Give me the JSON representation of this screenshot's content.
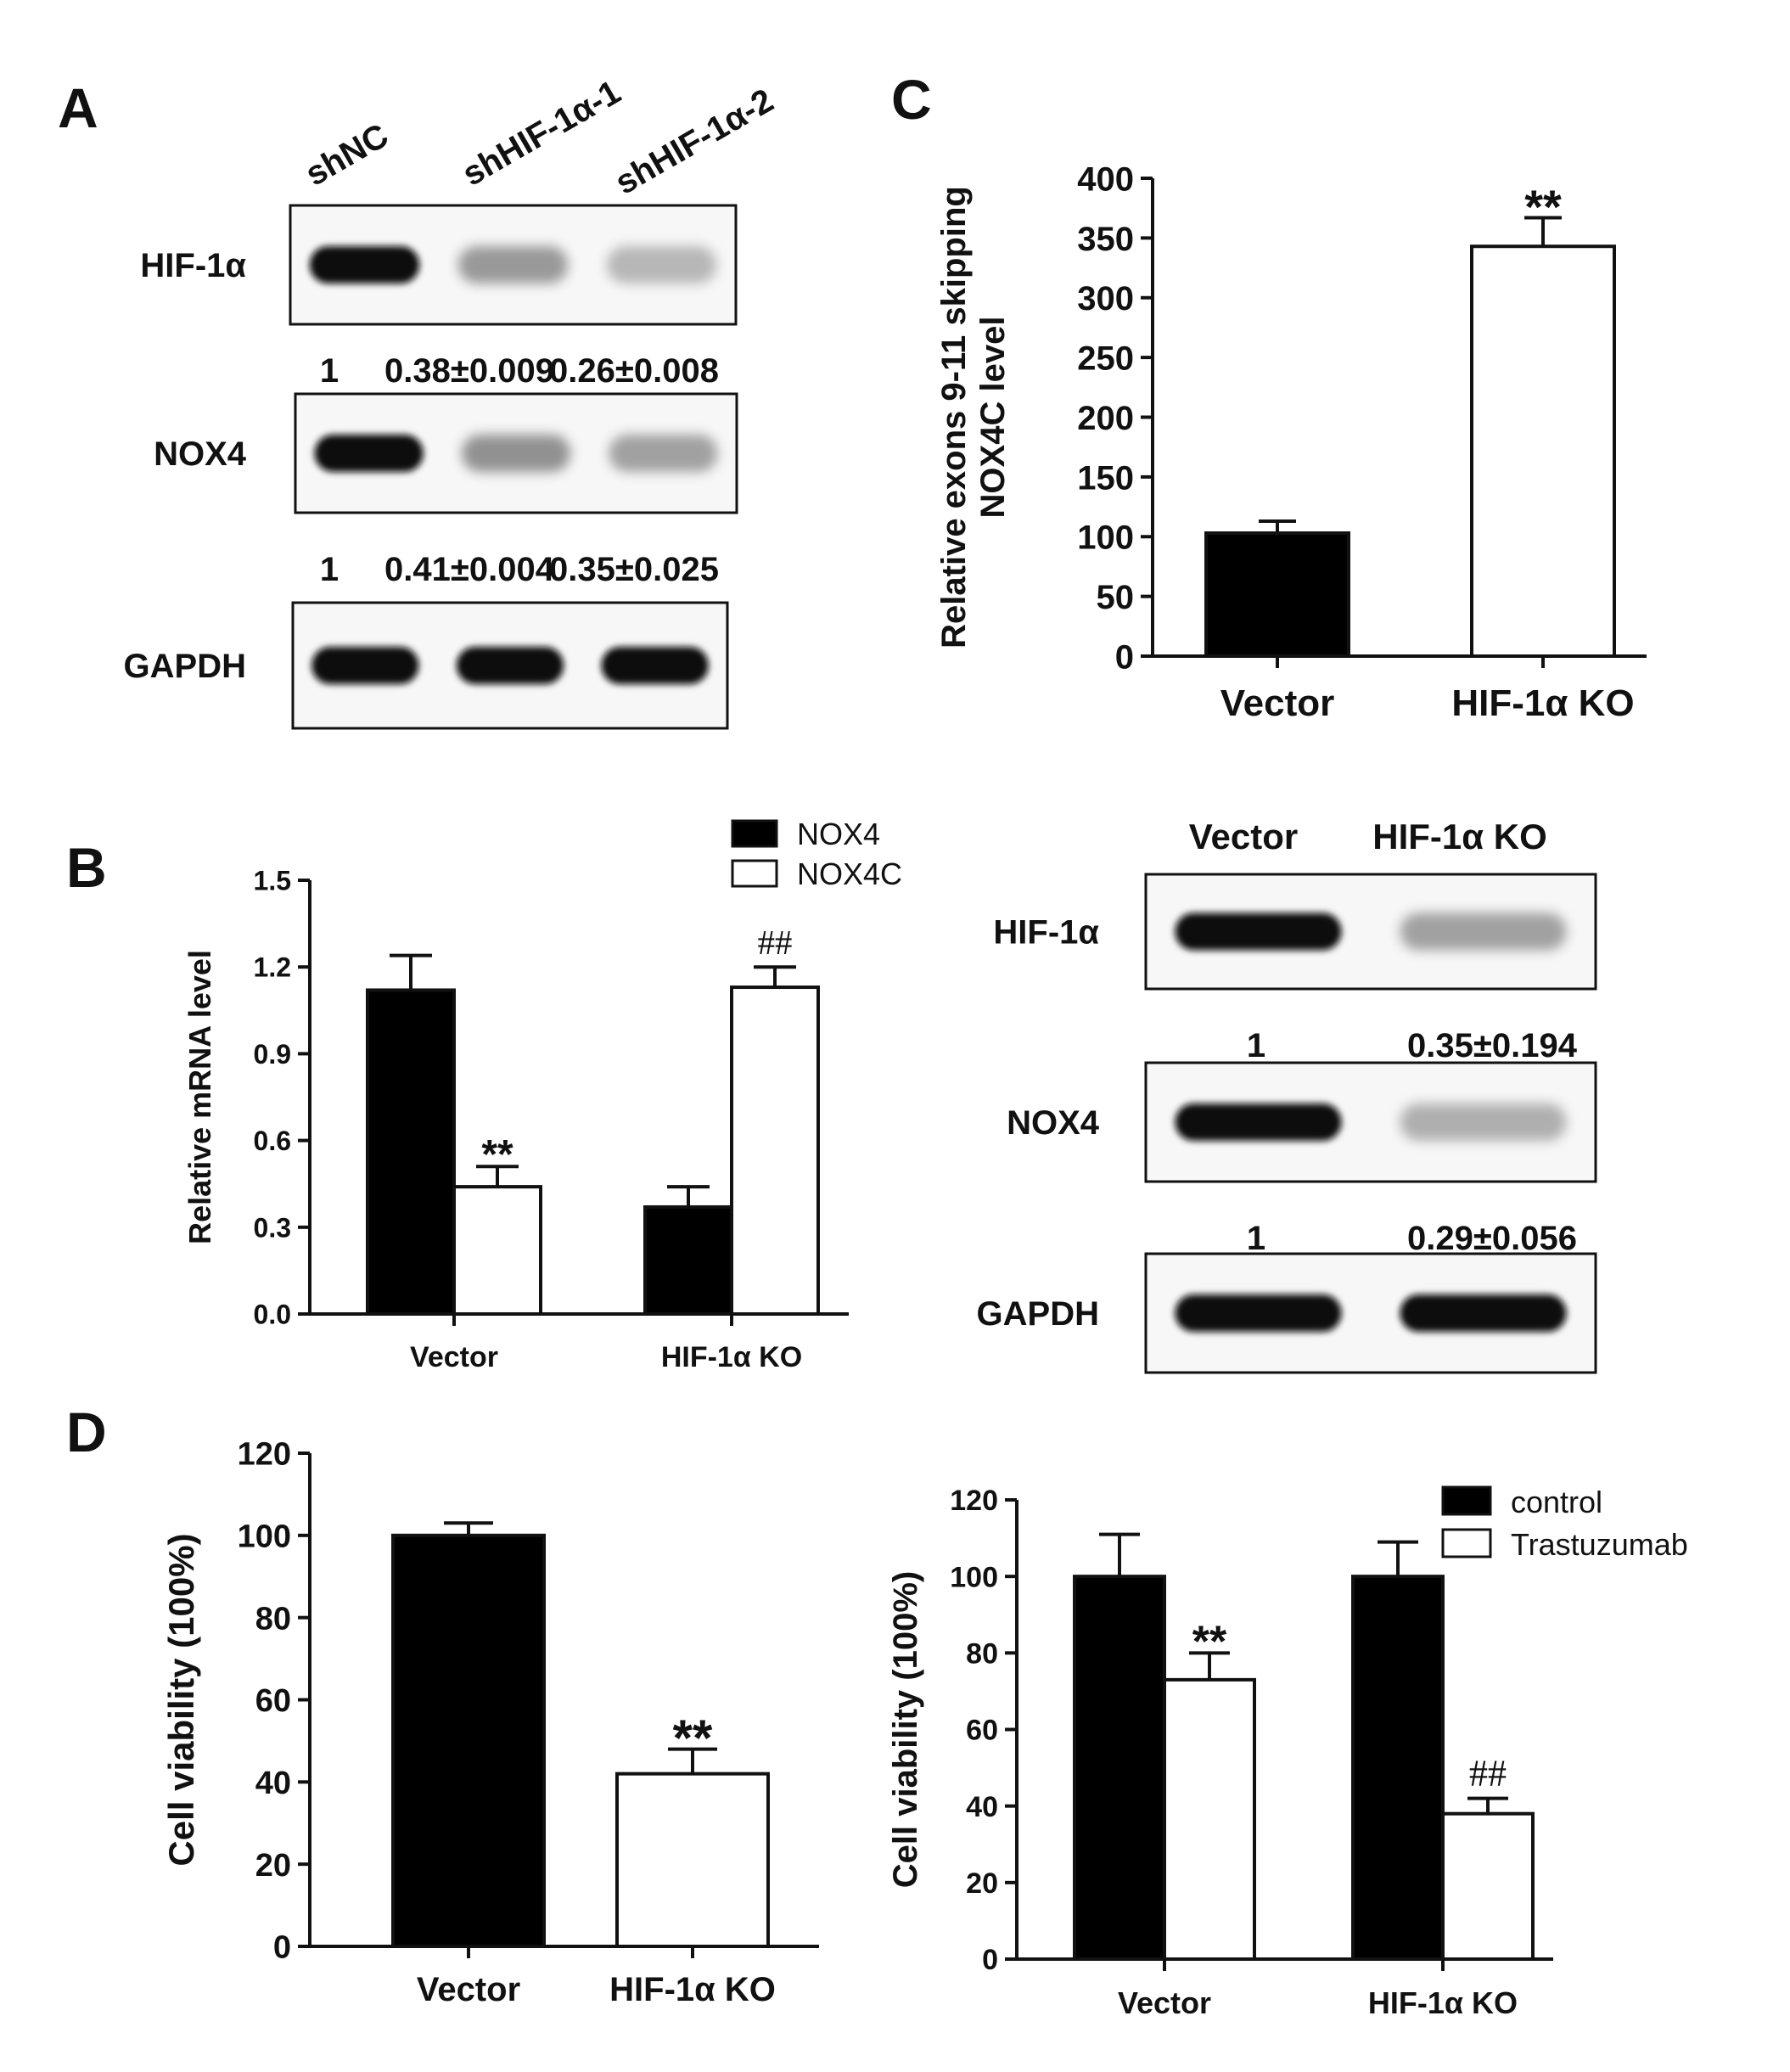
{
  "panels": {
    "A": {
      "letter": "A",
      "lanes": [
        "shNC",
        "shHIF-1α-1",
        "shHIF-1α-2"
      ],
      "blots": [
        {
          "label": "HIF-1α",
          "intensities": [
            1.0,
            0.38,
            0.26
          ],
          "quant": [
            "1",
            "0.38±0.009",
            "0.26±0.008"
          ]
        },
        {
          "label": "NOX4",
          "intensities": [
            1.0,
            0.41,
            0.35
          ],
          "quant": [
            "1",
            "0.41±0.004",
            "0.35±0.025"
          ]
        },
        {
          "label": "GAPDH",
          "intensities": [
            1.0,
            1.0,
            1.0
          ]
        }
      ]
    },
    "B_blot": {
      "lanes": [
        "Vector",
        "HIF-1α KO"
      ],
      "blots": [
        {
          "label": "HIF-1α",
          "intensities": [
            1.0,
            0.35
          ],
          "quant": [
            "1",
            "0.35±0.194"
          ]
        },
        {
          "label": "NOX4",
          "intensities": [
            1.0,
            0.29
          ],
          "quant": [
            "1",
            "0.29±0.056"
          ]
        },
        {
          "label": "GAPDH",
          "intensities": [
            1.0,
            1.0
          ]
        }
      ]
    },
    "B": {
      "letter": "B"
    },
    "C": {
      "letter": "C"
    },
    "D": {
      "letter": "D"
    }
  },
  "chart_data": [
    {
      "id": "C",
      "type": "bar",
      "categories": [
        "Vector",
        "HIF-1α KO"
      ],
      "series": [
        {
          "values": [
            103,
            343
          ],
          "errors": [
            10,
            24
          ],
          "fills": [
            "#000000",
            "#ffffff"
          ]
        }
      ],
      "ylabel_lines": [
        "Relative exons 9-11 skipping",
        "NOX4C level"
      ],
      "ylim": [
        0,
        400
      ],
      "yticks": [
        "0",
        "50",
        "100",
        "150",
        "200",
        "250",
        "300",
        "350",
        "400"
      ],
      "annotations": [
        {
          "category": 1,
          "series": 0,
          "text": "**"
        }
      ]
    },
    {
      "id": "B",
      "type": "bar",
      "categories": [
        "Vector",
        "HIF-1α KO"
      ],
      "series": [
        {
          "name": "NOX4",
          "values": [
            1.12,
            0.37
          ],
          "errors": [
            0.12,
            0.07
          ],
          "fill": "#000000"
        },
        {
          "name": "NOX4C",
          "values": [
            0.44,
            1.13
          ],
          "errors": [
            0.07,
            0.07
          ],
          "fill": "#ffffff"
        }
      ],
      "ylabel_lines": [
        "Relative mRNA level"
      ],
      "ylim": [
        0,
        1.5
      ],
      "yticks": [
        "0.0",
        "0.3",
        "0.6",
        "0.9",
        "1.2",
        "1.5"
      ],
      "legend_position": "top-right",
      "annotations": [
        {
          "category": 0,
          "series": 1,
          "text": "**"
        },
        {
          "category": 1,
          "series": 1,
          "text": "##"
        }
      ]
    },
    {
      "id": "D1",
      "type": "bar",
      "categories": [
        "Vector",
        "HIF-1α KO"
      ],
      "series": [
        {
          "values": [
            100,
            42
          ],
          "errors": [
            3,
            6
          ],
          "fills": [
            "#000000",
            "#ffffff"
          ]
        }
      ],
      "ylabel_lines": [
        "Cell viability (100%)"
      ],
      "ylim": [
        0,
        120
      ],
      "yticks": [
        "0",
        "20",
        "40",
        "60",
        "80",
        "100",
        "120"
      ],
      "annotations": [
        {
          "category": 1,
          "series": 0,
          "text": "**"
        }
      ]
    },
    {
      "id": "D2",
      "type": "bar",
      "categories": [
        "Vector",
        "HIF-1α KO"
      ],
      "series": [
        {
          "name": "control",
          "values": [
            100,
            100
          ],
          "errors": [
            11,
            9
          ],
          "fill": "#000000"
        },
        {
          "name": "Trastuzumab",
          "values": [
            73,
            38
          ],
          "errors": [
            7,
            4
          ],
          "fill": "#ffffff"
        }
      ],
      "ylabel_lines": [
        "Cell viability (100%)"
      ],
      "ylim": [
        0,
        120
      ],
      "yticks": [
        "0",
        "20",
        "40",
        "60",
        "80",
        "100",
        "120"
      ],
      "legend_position": "top-right",
      "annotations": [
        {
          "category": 0,
          "series": 1,
          "text": "**"
        },
        {
          "category": 1,
          "series": 1,
          "text": "##"
        }
      ]
    }
  ]
}
